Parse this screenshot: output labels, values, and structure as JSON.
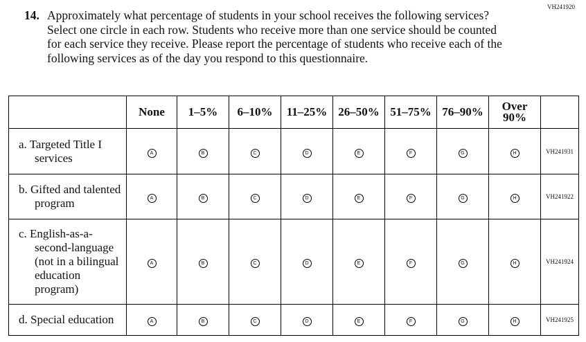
{
  "header": {
    "id": "VH241920"
  },
  "question": {
    "number": "14.",
    "text": "Approximately what percentage of students in your school receives the following services? Select one circle in each row. Students who receive more than one service should be counted for each service they receive. Please report the percentage of students who receive each of the following services as of the day you respond to this questionnaire."
  },
  "table": {
    "columns": [
      "None",
      "1–5%",
      "6–10%",
      "11–25%",
      "26–50%",
      "51–75%",
      "76–90%",
      "Over 90%"
    ],
    "bubbles": [
      "A",
      "B",
      "C",
      "D",
      "E",
      "F",
      "G",
      "H"
    ],
    "rows": [
      {
        "label": "a. Targeted Title I services",
        "id": "VH241931"
      },
      {
        "label": "b. Gifted and talented program",
        "id": "VH241922"
      },
      {
        "label": "c. English-as-a-second-language (not in a bilingual education program)",
        "id": "VH241924"
      },
      {
        "label": "d. Special education",
        "id": "VH241925"
      }
    ]
  }
}
